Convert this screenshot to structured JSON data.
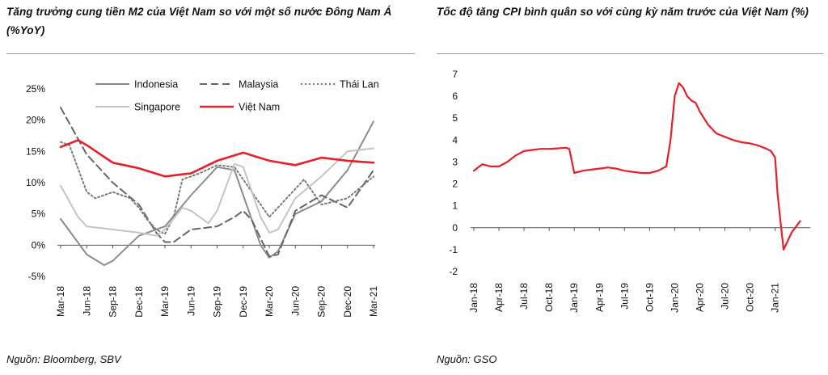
{
  "left_panel": {
    "title": "Tăng trưởng cung tiền M2 của Việt Nam so với một số nước Đông Nam Á (%YoY)",
    "source": "Nguồn: Bloomberg, SBV"
  },
  "right_panel": {
    "title": "Tốc độ tăng CPI bình quân so với cùng kỳ năm trước của Việt Nam (%)",
    "source": "Nguồn: GSO"
  },
  "chart_data": [
    {
      "type": "line",
      "title": "Tăng trưởng cung tiền M2 của Việt Nam so với một số nước Đông Nam Á (%YoY)",
      "xlabel": "",
      "ylabel": "",
      "ylim": [
        -5,
        25
      ],
      "y_ticks": [
        -5,
        0,
        5,
        10,
        15,
        20,
        25
      ],
      "y_tick_labels": [
        "-5%",
        "0%",
        "5%",
        "10%",
        "15%",
        "20%",
        "25%"
      ],
      "x_range": [
        0,
        36
      ],
      "x_ticks": [
        0,
        3,
        6,
        9,
        12,
        15,
        18,
        21,
        24,
        27,
        30,
        33,
        36
      ],
      "x_tick_labels": [
        "Mar-18",
        "Jun-18",
        "Sep-18",
        "Dec-18",
        "Mar-19",
        "Jun-19",
        "Sep-19",
        "Dec-19",
        "Mar-20",
        "Jun-20",
        "Sep-20",
        "Dec-20",
        "Mar-21"
      ],
      "legend_position": "top",
      "series": [
        {
          "name": "Indonesia",
          "color": "#8c8c8c",
          "style": "solid",
          "x": [
            0,
            3,
            5,
            6,
            9,
            12,
            15,
            18,
            20,
            21,
            23,
            24,
            25,
            27,
            30,
            33,
            36
          ],
          "values": [
            4.2,
            -1.5,
            -3.2,
            -2.5,
            1.5,
            3.0,
            8.0,
            12.5,
            12.0,
            8.0,
            0.0,
            -2.0,
            -1.0,
            5.0,
            7.0,
            12.0,
            19.8
          ]
        },
        {
          "name": "Malaysia",
          "color": "#666666",
          "style": "dashed",
          "x": [
            0,
            3,
            6,
            9,
            11,
            12,
            13,
            15,
            18,
            20,
            21,
            22,
            24,
            25,
            27,
            30,
            33,
            36
          ],
          "values": [
            22.0,
            14.5,
            10.0,
            6.5,
            2.0,
            0.5,
            0.5,
            2.5,
            3.0,
            4.5,
            5.5,
            4.0,
            -1.8,
            -1.5,
            5.5,
            8.0,
            6.0,
            12.0
          ]
        },
        {
          "name": "Thái Lan",
          "color": "#7a7a7a",
          "style": "dotted",
          "x": [
            0,
            1,
            3,
            4,
            6,
            8,
            9,
            10,
            11,
            12,
            13,
            14,
            16,
            18,
            20,
            22,
            24,
            26,
            28,
            30,
            33,
            36
          ],
          "values": [
            16.5,
            16.0,
            8.5,
            7.5,
            8.5,
            7.5,
            6.0,
            4.0,
            2.5,
            1.8,
            4.5,
            10.5,
            11.5,
            12.8,
            12.5,
            8.5,
            4.5,
            7.5,
            10.5,
            6.5,
            7.5,
            11.0
          ]
        },
        {
          "name": "Singapore",
          "color": "#c4c4c4",
          "style": "solid",
          "x": [
            0,
            2,
            3,
            6,
            9,
            11,
            12,
            14,
            15,
            17,
            18,
            20,
            21,
            23,
            24,
            25,
            27,
            30,
            33,
            36
          ],
          "values": [
            9.5,
            4.5,
            3.0,
            2.5,
            2.0,
            1.5,
            2.5,
            6.0,
            5.5,
            3.5,
            5.5,
            13.0,
            12.5,
            4.5,
            2.0,
            2.5,
            7.5,
            11.0,
            15.0,
            15.5
          ]
        },
        {
          "name": "Việt Nam",
          "color": "#e8202a",
          "style": "solid",
          "x": [
            0,
            2,
            3,
            6,
            9,
            12,
            15,
            18,
            21,
            24,
            27,
            30,
            33,
            36
          ],
          "values": [
            15.7,
            16.8,
            16.0,
            13.2,
            12.3,
            11.0,
            11.5,
            13.5,
            14.8,
            13.5,
            12.8,
            14.0,
            13.5,
            13.2
          ]
        }
      ]
    },
    {
      "type": "line",
      "title": "Tốc độ tăng CPI bình quân so với cùng kỳ năm trước của Việt Nam (%)",
      "xlabel": "",
      "ylabel": "",
      "ylim": [
        -2,
        7
      ],
      "y_ticks": [
        -2,
        -1,
        0,
        1,
        2,
        3,
        4,
        5,
        6,
        7
      ],
      "y_tick_labels": [
        "-2",
        "-1",
        "0",
        "1",
        "2",
        "3",
        "4",
        "5",
        "6",
        "7"
      ],
      "x_range": [
        0,
        40
      ],
      "x_ticks": [
        0,
        3,
        6,
        9,
        12,
        15,
        18,
        21,
        24,
        27,
        30,
        33,
        36
      ],
      "x_tick_labels": [
        "Jan-18",
        "Apr-18",
        "Jul-18",
        "Oct-18",
        "Jan-19",
        "Apr-19",
        "Jul-19",
        "Oct-19",
        "Jan-20",
        "Apr-20",
        "Jul-20",
        "Oct-20",
        "Jan-21"
      ],
      "legend_position": "none",
      "series": [
        {
          "name": "CPI",
          "color": "#e8202a",
          "style": "solid",
          "x": [
            0,
            1,
            2,
            3,
            4,
            5,
            6,
            7,
            8,
            9,
            10,
            11,
            11.4,
            12,
            13,
            14,
            15,
            16,
            17,
            18,
            19,
            20,
            21,
            22,
            23,
            23.5,
            24,
            24.5,
            25,
            25.5,
            26,
            26.5,
            27,
            28,
            29,
            30,
            31,
            32,
            33,
            34,
            35,
            35.5,
            36,
            36.3,
            37,
            38,
            39
          ],
          "values": [
            2.6,
            2.9,
            2.8,
            2.8,
            3.0,
            3.3,
            3.5,
            3.55,
            3.6,
            3.6,
            3.62,
            3.65,
            3.6,
            2.5,
            2.6,
            2.65,
            2.7,
            2.75,
            2.7,
            2.6,
            2.55,
            2.5,
            2.5,
            2.6,
            2.8,
            4.0,
            6.0,
            6.6,
            6.4,
            6.0,
            5.8,
            5.7,
            5.3,
            4.7,
            4.3,
            4.15,
            4.0,
            3.9,
            3.85,
            3.75,
            3.6,
            3.5,
            3.2,
            1.5,
            -1.0,
            -0.2,
            0.3
          ]
        }
      ]
    }
  ]
}
